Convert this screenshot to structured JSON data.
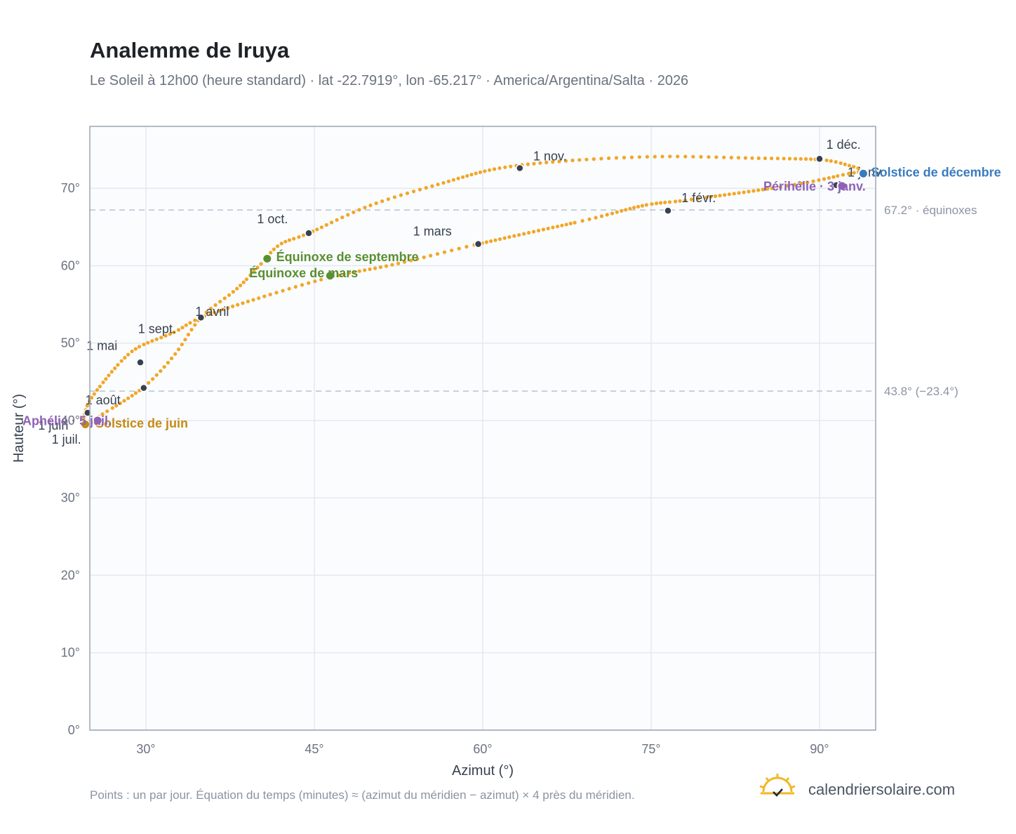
{
  "header": {
    "title": "Analemme de Iruya",
    "subtitle": "Le Soleil à 12h00 (heure standard) · lat -22.7919°, lon -65.217° · America/Argentina/Salta · 2026"
  },
  "footer": {
    "note": "Points : un par jour. Équation du temps (minutes) ≈ (azimut du méridien − azimut) × 4 près du méridien.",
    "brand": "calendriersolaire.com"
  },
  "colors": {
    "curve": "#f2a626",
    "month_point": "#374151",
    "equinox": "#5a8f32",
    "solstice_june": "#c68a14",
    "solstice_december": "#3a7bbf",
    "perihelion_aphelion": "#8e62b5",
    "grid": "#e5e9ee",
    "plot_background": "#fafcfe",
    "reference_line": "#b9c3cf"
  },
  "chart_data": {
    "type": "scatter",
    "xlabel": "Azimut (°)",
    "ylabel": "Hauteur (°)",
    "xlim": [
      25,
      95
    ],
    "ylim": [
      0,
      78
    ],
    "x_ticks": [
      {
        "value": 30,
        "label": "30°"
      },
      {
        "value": 45,
        "label": "45°"
      },
      {
        "value": 60,
        "label": "60°"
      },
      {
        "value": 75,
        "label": "75°"
      },
      {
        "value": 90,
        "label": "90°"
      }
    ],
    "y_ticks": [
      {
        "value": 0,
        "label": "0°"
      },
      {
        "value": 10,
        "label": "10°"
      },
      {
        "value": 20,
        "label": "20°"
      },
      {
        "value": 30,
        "label": "30°"
      },
      {
        "value": 40,
        "label": "40°"
      },
      {
        "value": 50,
        "label": "50°"
      },
      {
        "value": 60,
        "label": "60°"
      },
      {
        "value": 70,
        "label": "70°"
      }
    ],
    "grid": true,
    "reference_lines": [
      {
        "y": 67.2,
        "label": "67.2° · équinoxes"
      },
      {
        "y": 43.8,
        "label": "43.8° (−23.4°)"
      }
    ],
    "daily_points": [
      [
        92.6,
        71.9
      ],
      [
        87.5,
        70.4
      ],
      [
        78.3,
        68.5
      ],
      [
        74.4,
        67.8
      ],
      [
        69.2,
        65.9
      ],
      [
        59.6,
        62.8
      ],
      [
        52.2,
        60.2
      ],
      [
        46.4,
        58.5
      ],
      [
        39.8,
        55.7
      ],
      [
        34.9,
        53.3
      ],
      [
        32.5,
        51.4
      ],
      [
        29.5,
        49.6
      ],
      [
        27.9,
        47.8
      ],
      [
        25.9,
        44.4
      ],
      [
        24.8,
        42.0
      ],
      [
        24.4,
        39.7
      ],
      [
        24.6,
        39.2
      ],
      [
        25.9,
        40.6
      ],
      [
        29.7,
        44.2
      ],
      [
        32.5,
        48.4
      ],
      [
        34.9,
        53.3
      ],
      [
        38.0,
        56.9
      ],
      [
        40.1,
        60.0
      ],
      [
        41.9,
        62.7
      ],
      [
        44.5,
        64.2
      ],
      [
        50.0,
        67.8
      ],
      [
        56.5,
        70.7
      ],
      [
        61.5,
        72.6
      ],
      [
        68.0,
        73.6
      ],
      [
        76.0,
        74.1
      ],
      [
        84.0,
        73.9
      ],
      [
        90.0,
        73.7
      ],
      [
        92.5,
        73.0
      ],
      [
        93.8,
        72.3
      ],
      [
        92.6,
        71.9
      ]
    ],
    "month_markers": [
      {
        "label": "1 janv.",
        "x": 91.5,
        "y": 70.4,
        "dx": 1.0,
        "dy": 1.1
      },
      {
        "label": "1 févr.",
        "x": 76.5,
        "y": 67.1,
        "dx": 1.2,
        "dy": 1.1
      },
      {
        "label": "1 mars",
        "x": 59.6,
        "y": 62.8,
        "dx": -5.8,
        "dy": 1.1
      },
      {
        "label": "1 avril",
        "x": 34.9,
        "y": 53.3,
        "dx": -0.5,
        "dy": 0.2
      },
      {
        "label": "1 mai",
        "x": 29.5,
        "y": 47.5,
        "dx": -4.8,
        "dy": 1.6
      },
      {
        "label": "1 juin",
        "x": 24.8,
        "y": 39.7,
        "dx": -4.4,
        "dy": -0.9
      },
      {
        "label": "1 juil.",
        "x": 24.8,
        "y": 39.5,
        "dx": -3.2,
        "dy": -2.5
      },
      {
        "label": "1 août",
        "x": 24.8,
        "y": 41.0,
        "dx": -0.2,
        "dy": 1.1
      },
      {
        "label": "1 sept.",
        "x": 29.8,
        "y": 44.2,
        "dx": -0.5,
        "dy": 7.1
      },
      {
        "label": "1 oct.",
        "x": 44.5,
        "y": 64.2,
        "dx": -4.6,
        "dy": 1.3
      },
      {
        "label": "1 nov.",
        "x": 63.3,
        "y": 72.6,
        "dx": 1.2,
        "dy": 1.0
      },
      {
        "label": "1 déc.",
        "x": 90.0,
        "y": 73.8,
        "dx": 0.6,
        "dy": 1.3
      }
    ],
    "events": [
      {
        "label": "Équinoxe de mars",
        "x": 46.4,
        "y": 58.7,
        "color_key": "equinox",
        "dx": -7.2,
        "dy": -0.2
      },
      {
        "label": "Équinoxe de septembre",
        "x": 40.8,
        "y": 60.9,
        "color_key": "equinox",
        "dx": 0.8,
        "dy": -0.3
      },
      {
        "label": "Solstice de juin",
        "x": 24.6,
        "y": 39.5,
        "color_key": "solstice_june",
        "dx": 0.9,
        "dy": -0.4
      },
      {
        "label": "Solstice de décembre",
        "x": 93.9,
        "y": 71.9,
        "color_key": "solstice_december",
        "dx": 0.7,
        "dy": -0.4
      },
      {
        "label": "Périhélie · 3 janv.",
        "x": 92.0,
        "y": 70.3,
        "color_key": "perihelion_aphelion",
        "dx": -7.0,
        "dy": -0.6
      },
      {
        "label": "Aphélie · 5 juil.",
        "x": 25.7,
        "y": 40.0,
        "color_key": "perihelion_aphelion",
        "dx": -6.7,
        "dy": -0.6
      }
    ]
  }
}
